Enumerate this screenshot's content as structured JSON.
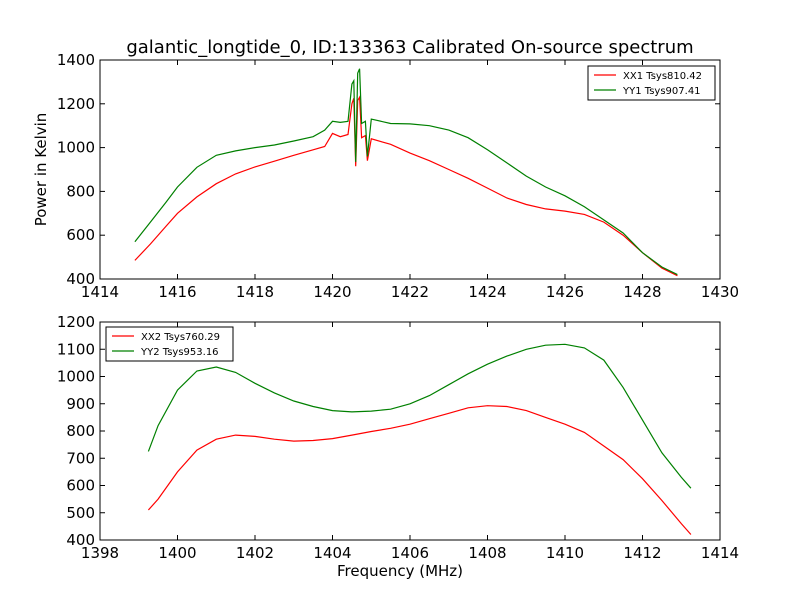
{
  "figure": {
    "title": "galantic_longtide_0, ID:133363 Calibrated On-source spectrum"
  },
  "chart_data": [
    {
      "type": "line",
      "xlabel": "",
      "ylabel": "Power in Kelvin",
      "xlim": [
        1414,
        1430
      ],
      "ylim": [
        400,
        1400
      ],
      "xticks": [
        "1414",
        "1416",
        "1418",
        "1420",
        "1422",
        "1424",
        "1426",
        "1428",
        "1430"
      ],
      "yticks": [
        "400",
        "600",
        "800",
        "1000",
        "1200",
        "1400"
      ],
      "grid": false,
      "legend_position": "upper right",
      "series": [
        {
          "name": "XX1 Tsys810.42",
          "color": "#ff0000",
          "x": [
            1414.9,
            1415.3,
            1415.7,
            1416.0,
            1416.5,
            1417.0,
            1417.5,
            1418.0,
            1418.5,
            1419.0,
            1419.5,
            1419.8,
            1420.0,
            1420.2,
            1420.4,
            1420.5,
            1420.55,
            1420.6,
            1420.65,
            1420.7,
            1420.75,
            1420.85,
            1420.9,
            1421.0,
            1421.5,
            1422.0,
            1422.5,
            1423.0,
            1423.5,
            1424.0,
            1424.5,
            1425.0,
            1425.5,
            1426.0,
            1426.5,
            1427.0,
            1427.5,
            1428.0,
            1428.5,
            1428.9
          ],
          "y": [
            485,
            560,
            640,
            700,
            775,
            835,
            880,
            912,
            938,
            965,
            990,
            1005,
            1065,
            1050,
            1060,
            1200,
            1225,
            915,
            1215,
            1230,
            1045,
            1055,
            940,
            1040,
            1015,
            975,
            940,
            900,
            860,
            815,
            770,
            740,
            720,
            710,
            695,
            660,
            600,
            520,
            450,
            415
          ]
        },
        {
          "name": "YY1 Tsys907.41",
          "color": "#008000",
          "x": [
            1414.9,
            1415.3,
            1415.7,
            1416.0,
            1416.5,
            1417.0,
            1417.5,
            1418.0,
            1418.5,
            1419.0,
            1419.5,
            1419.8,
            1420.0,
            1420.2,
            1420.4,
            1420.5,
            1420.55,
            1420.6,
            1420.65,
            1420.7,
            1420.75,
            1420.85,
            1420.9,
            1421.0,
            1421.5,
            1422.0,
            1422.5,
            1423.0,
            1423.5,
            1424.0,
            1424.5,
            1425.0,
            1425.5,
            1426.0,
            1426.5,
            1427.0,
            1427.5,
            1428.0,
            1428.5,
            1428.9
          ],
          "y": [
            570,
            660,
            750,
            820,
            910,
            965,
            985,
            1000,
            1012,
            1030,
            1050,
            1080,
            1120,
            1115,
            1120,
            1290,
            1305,
            935,
            1340,
            1360,
            1110,
            1120,
            960,
            1130,
            1110,
            1108,
            1100,
            1080,
            1045,
            990,
            930,
            870,
            820,
            780,
            730,
            670,
            610,
            520,
            455,
            420
          ]
        }
      ]
    },
    {
      "type": "line",
      "xlabel": "Frequency (MHz)",
      "ylabel": "",
      "xlim": [
        1398,
        1414
      ],
      "ylim": [
        400,
        1200
      ],
      "xticks": [
        "1398",
        "1400",
        "1402",
        "1404",
        "1406",
        "1408",
        "1410",
        "1412",
        "1414"
      ],
      "yticks": [
        "400",
        "500",
        "600",
        "700",
        "800",
        "900",
        "1000",
        "1100",
        "1200"
      ],
      "grid": false,
      "legend_position": "upper left",
      "series": [
        {
          "name": "XX2 Tsys760.29",
          "color": "#ff0000",
          "x": [
            1399.25,
            1399.5,
            1400.0,
            1400.5,
            1401.0,
            1401.5,
            1402.0,
            1402.5,
            1403.0,
            1403.5,
            1404.0,
            1404.5,
            1405.0,
            1405.5,
            1406.0,
            1406.5,
            1407.0,
            1407.5,
            1408.0,
            1408.5,
            1409.0,
            1409.5,
            1410.0,
            1410.5,
            1411.0,
            1411.5,
            1412.0,
            1412.5,
            1413.0,
            1413.25
          ],
          "y": [
            510,
            550,
            650,
            730,
            770,
            785,
            780,
            770,
            763,
            765,
            772,
            785,
            798,
            810,
            825,
            845,
            865,
            885,
            893,
            890,
            875,
            850,
            825,
            795,
            745,
            695,
            625,
            545,
            460,
            420
          ]
        },
        {
          "name": "YY2 Tsys953.16",
          "color": "#008000",
          "x": [
            1399.25,
            1399.5,
            1400.0,
            1400.5,
            1401.0,
            1401.5,
            1402.0,
            1402.5,
            1403.0,
            1403.5,
            1404.0,
            1404.5,
            1405.0,
            1405.5,
            1406.0,
            1406.5,
            1407.0,
            1407.5,
            1408.0,
            1408.5,
            1409.0,
            1409.5,
            1410.0,
            1410.5,
            1411.0,
            1411.5,
            1412.0,
            1412.5,
            1413.0,
            1413.25
          ],
          "y": [
            725,
            820,
            950,
            1020,
            1035,
            1015,
            975,
            940,
            910,
            890,
            875,
            870,
            873,
            880,
            900,
            930,
            970,
            1010,
            1045,
            1075,
            1100,
            1115,
            1118,
            1105,
            1060,
            960,
            840,
            720,
            630,
            590
          ]
        }
      ]
    }
  ]
}
